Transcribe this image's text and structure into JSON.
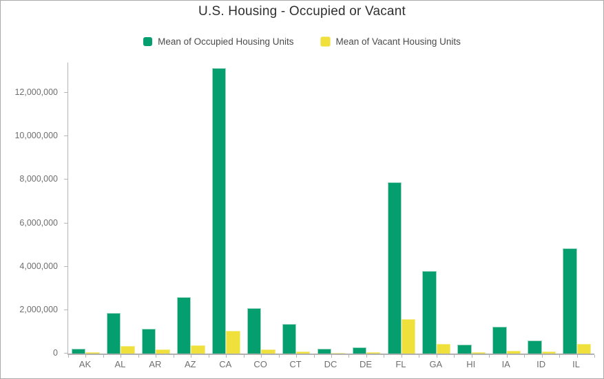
{
  "header": {
    "title": "U.S. Housing - Occupied or Vacant"
  },
  "legend": {
    "items": [
      {
        "label": "Mean of Occupied Housing Units",
        "color": "#049e6f",
        "stroke": "#9ed7c2"
      },
      {
        "label": "Mean of Vacant Housing Units",
        "color": "#f0e03c",
        "stroke": "#f5ec8e"
      }
    ]
  },
  "chart_data": {
    "type": "bar",
    "title": "U.S. Housing - Occupied or Vacant",
    "xlabel": "",
    "ylabel": "",
    "categories": [
      "AK",
      "AL",
      "AR",
      "AZ",
      "CA",
      "CO",
      "CT",
      "DC",
      "DE",
      "FL",
      "GA",
      "HI",
      "IA",
      "ID",
      "IL"
    ],
    "series": [
      {
        "name": "Mean of Occupied Housing Units",
        "color": "#049e6f",
        "stroke": "#9ed7c2",
        "values": [
          230000,
          1860000,
          1130000,
          2600000,
          13150000,
          2080000,
          1350000,
          230000,
          290000,
          7900000,
          3790000,
          420000,
          1250000,
          610000,
          4840000
        ]
      },
      {
        "name": "Mean of Vacant Housing Units",
        "color": "#f0e03c",
        "stroke": "#f5ec8e",
        "values": [
          60000,
          360000,
          180000,
          370000,
          1050000,
          180000,
          100000,
          30000,
          55000,
          1570000,
          450000,
          75000,
          130000,
          80000,
          450000
        ]
      }
    ],
    "y_ticks": [
      0,
      2000000,
      4000000,
      6000000,
      8000000,
      10000000,
      12000000
    ],
    "ylim": [
      0,
      13400000
    ],
    "grid": false,
    "legend_position": "top",
    "axis_color": "#b5b5b5",
    "axis_text_color": "#6e6e6e",
    "title_color": "#2f2f2f"
  }
}
